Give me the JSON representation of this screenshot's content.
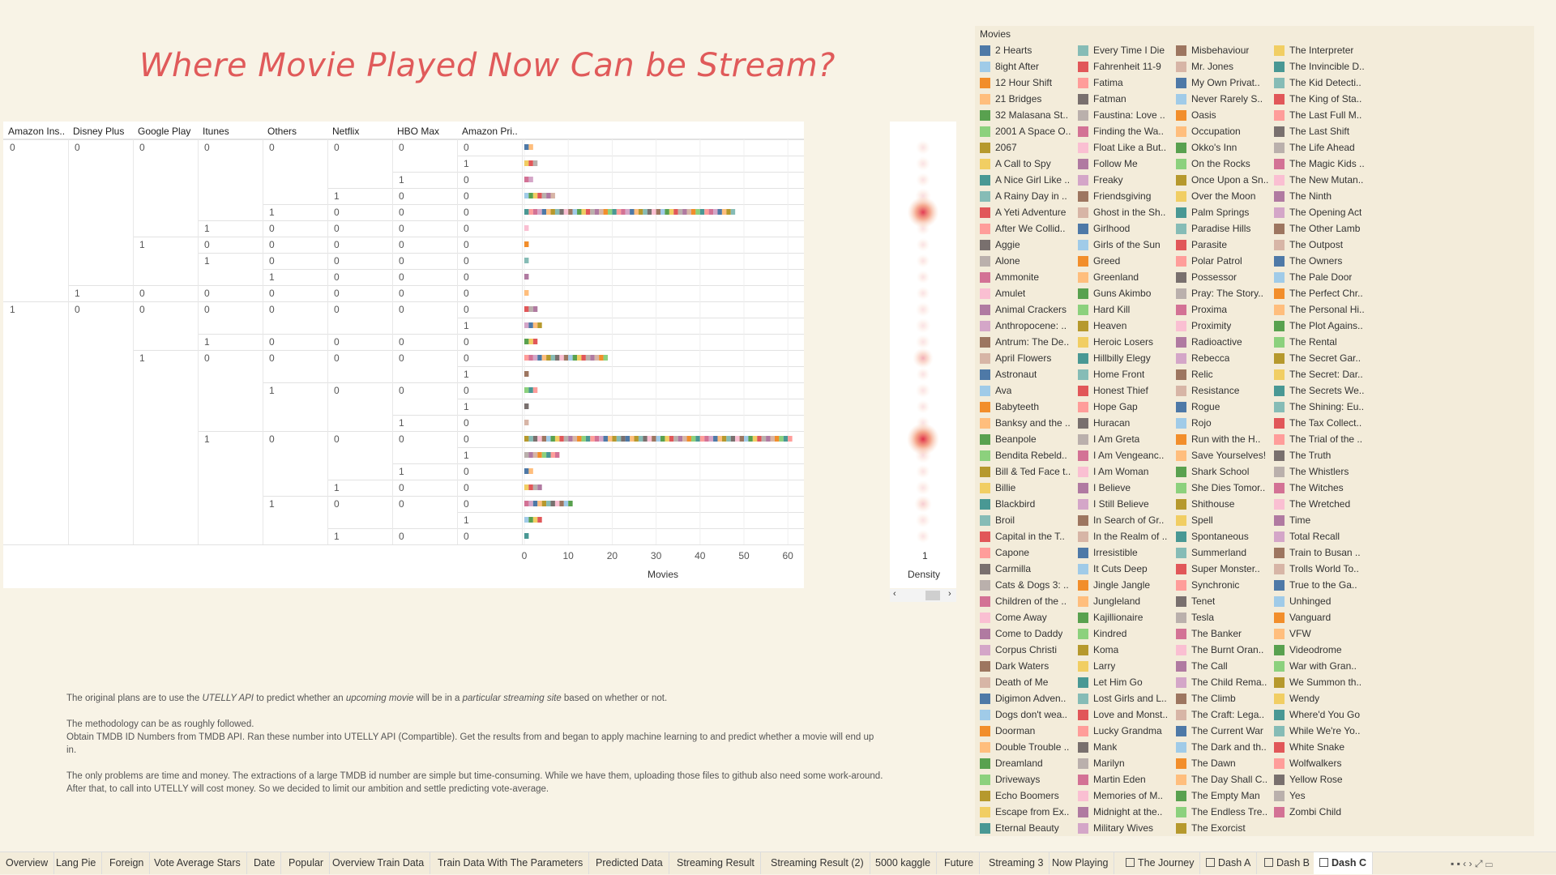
{
  "title": "Where Movie Played Now Can be Stream?",
  "columns": [
    "Amazon Ins..",
    "Disney Plus",
    "Google Play",
    "Itunes",
    "Others",
    "Netflix",
    "HBO Max",
    "Amazon Pri.."
  ],
  "rows": [
    {
      "c": [
        "0",
        "0",
        "0",
        "0",
        "0",
        "0",
        "0",
        "0"
      ],
      "movies": 2,
      "density": 0.1
    },
    {
      "c": [
        "",
        "",
        "",
        "",
        "",
        "",
        "",
        "1"
      ],
      "movies": 3,
      "density": 0.1
    },
    {
      "c": [
        "",
        "",
        "",
        "",
        "",
        "",
        "1",
        "0"
      ],
      "movies": 2,
      "density": 0.08
    },
    {
      "c": [
        "",
        "",
        "",
        "",
        "",
        "1",
        "0",
        "0"
      ],
      "movies": 7,
      "density": 0.18
    },
    {
      "c": [
        "",
        "",
        "",
        "",
        "1",
        "0",
        "0",
        "0"
      ],
      "movies": 48,
      "density": 0.95
    },
    {
      "c": [
        "",
        "",
        "",
        "1",
        "0",
        "0",
        "0",
        "0"
      ],
      "movies": 1,
      "density": 0.06
    },
    {
      "c": [
        "",
        "",
        "1",
        "0",
        "0",
        "0",
        "0",
        "0"
      ],
      "movies": 1,
      "density": 0.05
    },
    {
      "c": [
        "",
        "",
        "",
        "1",
        "0",
        "0",
        "0",
        "0"
      ],
      "movies": 1,
      "density": 0.05
    },
    {
      "c": [
        "",
        "",
        "",
        "",
        "1",
        "0",
        "0",
        "0"
      ],
      "movies": 1,
      "density": 0.04
    },
    {
      "c": [
        "",
        "1",
        "0",
        "0",
        "0",
        "0",
        "0",
        "0"
      ],
      "movies": 1,
      "density": 0.05
    },
    {
      "c": [
        "1",
        "0",
        "0",
        "0",
        "0",
        "0",
        "0",
        "0"
      ],
      "movies": 3,
      "density": 0.12
    },
    {
      "c": [
        "",
        "",
        "",
        "",
        "",
        "",
        "",
        "1"
      ],
      "movies": 4,
      "density": 0.14
    },
    {
      "c": [
        "",
        "",
        "",
        "1",
        "0",
        "0",
        "0",
        "0"
      ],
      "movies": 3,
      "density": 0.12
    },
    {
      "c": [
        "",
        "",
        "1",
        "0",
        "0",
        "0",
        "0",
        "0"
      ],
      "movies": 19,
      "density": 0.4
    },
    {
      "c": [
        "",
        "",
        "",
        "",
        "",
        "",
        "",
        "1"
      ],
      "movies": 1,
      "density": 0.05
    },
    {
      "c": [
        "",
        "",
        "",
        "",
        "1",
        "0",
        "0",
        "0"
      ],
      "movies": 3,
      "density": 0.12
    },
    {
      "c": [
        "",
        "",
        "",
        "",
        "",
        "",
        "",
        "1"
      ],
      "movies": 1,
      "density": 0.05
    },
    {
      "c": [
        "",
        "",
        "",
        "",
        "",
        "",
        "1",
        "0"
      ],
      "movies": 1,
      "density": 0.05
    },
    {
      "c": [
        "",
        "",
        "",
        "1",
        "0",
        "0",
        "0",
        "0"
      ],
      "movies": 61,
      "density": 1.0
    },
    {
      "c": [
        "",
        "",
        "",
        "",
        "",
        "",
        "",
        "1"
      ],
      "movies": 8,
      "density": 0.18
    },
    {
      "c": [
        "",
        "",
        "",
        "",
        "",
        "",
        "1",
        "0"
      ],
      "movies": 2,
      "density": 0.08
    },
    {
      "c": [
        "",
        "",
        "",
        "",
        "",
        "1",
        "0",
        "0"
      ],
      "movies": 4,
      "density": 0.12
    },
    {
      "c": [
        "",
        "",
        "",
        "",
        "1",
        "0",
        "0",
        "0"
      ],
      "movies": 11,
      "density": 0.25
    },
    {
      "c": [
        "",
        "",
        "",
        "",
        "",
        "",
        "",
        "1"
      ],
      "movies": 4,
      "density": 0.12
    },
    {
      "c": [
        "",
        "",
        "",
        "",
        "",
        "1",
        "0",
        "0"
      ],
      "movies": 1,
      "density": 0.05
    }
  ],
  "x_axis": {
    "ticks": [
      "0",
      "10",
      "20",
      "30",
      "40",
      "50",
      "60"
    ],
    "label": "Movies"
  },
  "density_axis": {
    "tick": "1",
    "label": "Density"
  },
  "description": {
    "p1_before_api": "The original plans are to use the ",
    "p1_api": "UTELLY API",
    "p1_mid1": "  to predict whether an ",
    "p1_upcoming": "upcoming movie",
    "p1_mid2": " will be in a ",
    "p1_site": "particular streaming site",
    "p1_after": " based on whether or not.",
    "p2_line1": "The methodology can be as roughly followed.",
    "p2_line2": "Obtain TMDB ID Numbers from TMDB API. Ran these number into UTELLY API (Compartible). Get the results from and began to apply machine learning to and predict whether a movie will end up in.",
    "p3": "The only problems are time and money. The extractions of a large TMDB id number are simple but time-consuming. While we have them, uploading those files to github also need some work-around. After that, to call into UTELLY will cost money. So we decided to limit our ambition and settle predicting vote-average."
  },
  "legend": {
    "title": "Movies",
    "items": [
      [
        "2 Hearts",
        "#4e79a7"
      ],
      [
        "8ight After",
        "#a0cbe8"
      ],
      [
        "12 Hour Shift",
        "#f28e2b"
      ],
      [
        "21 Bridges",
        "#ffbe7d"
      ],
      [
        "32 Malasana St..",
        "#59a14f"
      ],
      [
        "2001 A Space O..",
        "#8cd17d"
      ],
      [
        "2067",
        "#b6992d"
      ],
      [
        "A Call to Spy",
        "#f1ce63"
      ],
      [
        "A Nice Girl Like ..",
        "#499894"
      ],
      [
        "A Rainy Day in ..",
        "#86bcb6"
      ],
      [
        "A Yeti Adventure",
        "#e15759"
      ],
      [
        "After We Collid..",
        "#ff9d9a"
      ],
      [
        "Aggie",
        "#79706e"
      ],
      [
        "Alone",
        "#bab0ac"
      ],
      [
        "Ammonite",
        "#d37295"
      ],
      [
        "Amulet",
        "#fabfd2"
      ],
      [
        "Animal Crackers",
        "#b07aa1"
      ],
      [
        "Anthropocene: ..",
        "#d4a6c8"
      ],
      [
        "Antrum: The De..",
        "#9d7660"
      ],
      [
        "April Flowers",
        "#d7b5a6"
      ],
      [
        "Astronaut",
        "#4e79a7"
      ],
      [
        "Ava",
        "#a0cbe8"
      ],
      [
        "Babyteeth",
        "#f28e2b"
      ],
      [
        "Banksy and the ..",
        "#ffbe7d"
      ],
      [
        "Beanpole",
        "#59a14f"
      ],
      [
        "Bendita Rebeld..",
        "#8cd17d"
      ],
      [
        "Bill & Ted Face t..",
        "#b6992d"
      ],
      [
        "Billie",
        "#f1ce63"
      ],
      [
        "Blackbird",
        "#499894"
      ],
      [
        "Broil",
        "#86bcb6"
      ],
      [
        "Capital in the T..",
        "#e15759"
      ],
      [
        "Capone",
        "#ff9d9a"
      ],
      [
        "Carmilla",
        "#79706e"
      ],
      [
        "Cats & Dogs 3: ..",
        "#bab0ac"
      ],
      [
        "Children of the ..",
        "#d37295"
      ],
      [
        "Come Away",
        "#fabfd2"
      ],
      [
        "Come to Daddy",
        "#b07aa1"
      ],
      [
        "Corpus Christi",
        "#d4a6c8"
      ],
      [
        "Dark Waters",
        "#9d7660"
      ],
      [
        "Death of Me",
        "#d7b5a6"
      ],
      [
        "Digimon Adven..",
        "#4e79a7"
      ],
      [
        "Dogs don't wea..",
        "#a0cbe8"
      ],
      [
        "Doorman",
        "#f28e2b"
      ],
      [
        "Double Trouble ..",
        "#ffbe7d"
      ],
      [
        "Dreamland",
        "#59a14f"
      ],
      [
        "Driveways",
        "#8cd17d"
      ],
      [
        "Echo Boomers",
        "#b6992d"
      ],
      [
        "Escape from Ex..",
        "#f1ce63"
      ],
      [
        "Eternal Beauty",
        "#499894"
      ],
      [
        "Every Time I Die",
        "#86bcb6"
      ],
      [
        "Fahrenheit 11-9",
        "#e15759"
      ],
      [
        "Fatima",
        "#ff9d9a"
      ],
      [
        "Fatman",
        "#79706e"
      ],
      [
        "Faustina: Love ..",
        "#bab0ac"
      ],
      [
        "Finding the Wa..",
        "#d37295"
      ],
      [
        "Float Like a But..",
        "#fabfd2"
      ],
      [
        "Follow Me",
        "#b07aa1"
      ],
      [
        "Freaky",
        "#d4a6c8"
      ],
      [
        "Friendsgiving",
        "#9d7660"
      ],
      [
        "Ghost in the Sh..",
        "#d7b5a6"
      ],
      [
        "Girlhood",
        "#4e79a7"
      ],
      [
        "Girls of the Sun",
        "#a0cbe8"
      ],
      [
        "Greed",
        "#f28e2b"
      ],
      [
        "Greenland",
        "#ffbe7d"
      ],
      [
        "Guns Akimbo",
        "#59a14f"
      ],
      [
        "Hard Kill",
        "#8cd17d"
      ],
      [
        "Heaven",
        "#b6992d"
      ],
      [
        "Heroic Losers",
        "#f1ce63"
      ],
      [
        "Hillbilly Elegy",
        "#499894"
      ],
      [
        "Home Front",
        "#86bcb6"
      ],
      [
        "Honest Thief",
        "#e15759"
      ],
      [
        "Hope Gap",
        "#ff9d9a"
      ],
      [
        "Huracan",
        "#79706e"
      ],
      [
        "I Am Greta",
        "#bab0ac"
      ],
      [
        "I Am Vengeanc..",
        "#d37295"
      ],
      [
        "I Am Woman",
        "#fabfd2"
      ],
      [
        "I Believe",
        "#b07aa1"
      ],
      [
        "I Still Believe",
        "#d4a6c8"
      ],
      [
        "In Search of Gr..",
        "#9d7660"
      ],
      [
        "In the Realm of ..",
        "#d7b5a6"
      ],
      [
        "Irresistible",
        "#4e79a7"
      ],
      [
        "It Cuts Deep",
        "#a0cbe8"
      ],
      [
        "Jingle Jangle",
        "#f28e2b"
      ],
      [
        "Jungleland",
        "#ffbe7d"
      ],
      [
        "Kajillionaire",
        "#59a14f"
      ],
      [
        "Kindred",
        "#8cd17d"
      ],
      [
        "Koma",
        "#b6992d"
      ],
      [
        "Larry",
        "#f1ce63"
      ],
      [
        "Let Him Go",
        "#499894"
      ],
      [
        "Lost Girls and L..",
        "#86bcb6"
      ],
      [
        "Love and Monst..",
        "#e15759"
      ],
      [
        "Lucky Grandma",
        "#ff9d9a"
      ],
      [
        "Mank",
        "#79706e"
      ],
      [
        "Marilyn",
        "#bab0ac"
      ],
      [
        "Martin Eden",
        "#d37295"
      ],
      [
        "Memories of M..",
        "#fabfd2"
      ],
      [
        "Midnight at the..",
        "#b07aa1"
      ],
      [
        "Military Wives",
        "#d4a6c8"
      ],
      [
        "Misbehaviour",
        "#9d7660"
      ],
      [
        "Mr. Jones",
        "#d7b5a6"
      ],
      [
        "My Own Privat..",
        "#4e79a7"
      ],
      [
        "Never Rarely S..",
        "#a0cbe8"
      ],
      [
        "Oasis",
        "#f28e2b"
      ],
      [
        "Occupation",
        "#ffbe7d"
      ],
      [
        "Okko's Inn",
        "#59a14f"
      ],
      [
        "On the Rocks",
        "#8cd17d"
      ],
      [
        "Once Upon a Sn..",
        "#b6992d"
      ],
      [
        "Over the Moon",
        "#f1ce63"
      ],
      [
        "Palm Springs",
        "#499894"
      ],
      [
        "Paradise Hills",
        "#86bcb6"
      ],
      [
        "Parasite",
        "#e15759"
      ],
      [
        "Polar Patrol",
        "#ff9d9a"
      ],
      [
        "Possessor",
        "#79706e"
      ],
      [
        "Pray: The Story..",
        "#bab0ac"
      ],
      [
        "Proxima",
        "#d37295"
      ],
      [
        "Proximity",
        "#fabfd2"
      ],
      [
        "Radioactive",
        "#b07aa1"
      ],
      [
        "Rebecca",
        "#d4a6c8"
      ],
      [
        "Relic",
        "#9d7660"
      ],
      [
        "Resistance",
        "#d7b5a6"
      ],
      [
        "Rogue",
        "#4e79a7"
      ],
      [
        "Rojo",
        "#a0cbe8"
      ],
      [
        "Run with the H..",
        "#f28e2b"
      ],
      [
        "Save Yourselves!",
        "#ffbe7d"
      ],
      [
        "Shark School",
        "#59a14f"
      ],
      [
        "She Dies Tomor..",
        "#8cd17d"
      ],
      [
        "Shithouse",
        "#b6992d"
      ],
      [
        "Spell",
        "#f1ce63"
      ],
      [
        "Spontaneous",
        "#499894"
      ],
      [
        "Summerland",
        "#86bcb6"
      ],
      [
        "Super Monster..",
        "#e15759"
      ],
      [
        "Synchronic",
        "#ff9d9a"
      ],
      [
        "Tenet",
        "#79706e"
      ],
      [
        "Tesla",
        "#bab0ac"
      ],
      [
        "The Banker",
        "#d37295"
      ],
      [
        "The Burnt Oran..",
        "#fabfd2"
      ],
      [
        "The Call",
        "#b07aa1"
      ],
      [
        "The Child Rema..",
        "#d4a6c8"
      ],
      [
        "The Climb",
        "#9d7660"
      ],
      [
        "The Craft: Lega..",
        "#d7b5a6"
      ],
      [
        "The Current War",
        "#4e79a7"
      ],
      [
        "The Dark and th..",
        "#a0cbe8"
      ],
      [
        "The Dawn",
        "#f28e2b"
      ],
      [
        "The Day Shall C..",
        "#ffbe7d"
      ],
      [
        "The Empty Man",
        "#59a14f"
      ],
      [
        "The Endless Tre..",
        "#8cd17d"
      ],
      [
        "The Exorcist",
        "#b6992d"
      ],
      [
        "The Interpreter",
        "#f1ce63"
      ],
      [
        "The Invincible D..",
        "#499894"
      ],
      [
        "The Kid Detecti..",
        "#86bcb6"
      ],
      [
        "The King of Sta..",
        "#e15759"
      ],
      [
        "The Last Full M..",
        "#ff9d9a"
      ],
      [
        "The Last Shift",
        "#79706e"
      ],
      [
        "The Life Ahead",
        "#bab0ac"
      ],
      [
        "The Magic Kids ..",
        "#d37295"
      ],
      [
        "The New Mutan..",
        "#fabfd2"
      ],
      [
        "The Ninth",
        "#b07aa1"
      ],
      [
        "The Opening Act",
        "#d4a6c8"
      ],
      [
        "The Other Lamb",
        "#9d7660"
      ],
      [
        "The Outpost",
        "#d7b5a6"
      ],
      [
        "The Owners",
        "#4e79a7"
      ],
      [
        "The Pale Door",
        "#a0cbe8"
      ],
      [
        "The Perfect Chr..",
        "#f28e2b"
      ],
      [
        "The Personal Hi..",
        "#ffbe7d"
      ],
      [
        "The Plot Agains..",
        "#59a14f"
      ],
      [
        "The Rental",
        "#8cd17d"
      ],
      [
        "The Secret Gar..",
        "#b6992d"
      ],
      [
        "The Secret: Dar..",
        "#f1ce63"
      ],
      [
        "The Secrets We..",
        "#499894"
      ],
      [
        "The Shining: Eu..",
        "#86bcb6"
      ],
      [
        "The Tax Collect..",
        "#e15759"
      ],
      [
        "The Trial of the ..",
        "#ff9d9a"
      ],
      [
        "The Truth",
        "#79706e"
      ],
      [
        "The Whistlers",
        "#bab0ac"
      ],
      [
        "The Witches",
        "#d37295"
      ],
      [
        "The Wretched",
        "#fabfd2"
      ],
      [
        "Time",
        "#b07aa1"
      ],
      [
        "Total Recall",
        "#d4a6c8"
      ],
      [
        "Train to Busan ..",
        "#9d7660"
      ],
      [
        "Trolls World To..",
        "#d7b5a6"
      ],
      [
        "True to the Ga..",
        "#4e79a7"
      ],
      [
        "Unhinged",
        "#a0cbe8"
      ],
      [
        "Vanguard",
        "#f28e2b"
      ],
      [
        "VFW",
        "#ffbe7d"
      ],
      [
        "Videodrome",
        "#59a14f"
      ],
      [
        "War with Gran..",
        "#8cd17d"
      ],
      [
        "We Summon th..",
        "#b6992d"
      ],
      [
        "Wendy",
        "#f1ce63"
      ],
      [
        "Where'd You Go",
        "#499894"
      ],
      [
        "While We're Yo..",
        "#86bcb6"
      ],
      [
        "White Snake",
        "#e15759"
      ],
      [
        "Wolfwalkers",
        "#ff9d9a"
      ],
      [
        "Yellow Rose",
        "#79706e"
      ],
      [
        "Yes",
        "#bab0ac"
      ],
      [
        "Zombi Child",
        "#d37295"
      ]
    ]
  },
  "tabs": [
    {
      "label": "Overview"
    },
    {
      "label": "Lang Pie"
    },
    {
      "label": "Foreign"
    },
    {
      "label": "Vote Average Stars"
    },
    {
      "label": "Date"
    },
    {
      "label": "Popular"
    },
    {
      "label": "Overview Train Data"
    },
    {
      "label": "Train Data With The Parameters"
    },
    {
      "label": "Predicted Data"
    },
    {
      "label": "Streaming Result"
    },
    {
      "label": "Streaming Result (2)"
    },
    {
      "label": "5000 kaggle"
    },
    {
      "label": "Future"
    },
    {
      "label": "Streaming 3"
    },
    {
      "label": "Now Playing"
    },
    {
      "label": "The Journey",
      "icon": true
    },
    {
      "label": "Dash A",
      "icon": true
    },
    {
      "label": "Dash B",
      "icon": true
    },
    {
      "label": "Dash C",
      "icon": true,
      "active": true
    }
  ],
  "scroll_arrows": {
    "left": "‹",
    "right": "›"
  }
}
